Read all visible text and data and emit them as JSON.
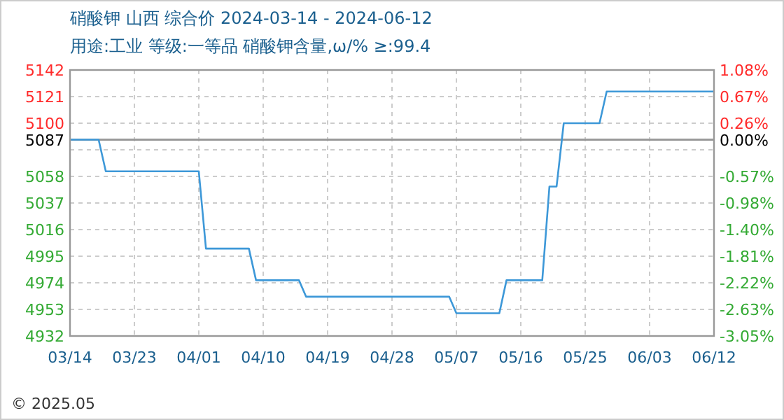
{
  "chart_data": {
    "type": "step",
    "title": "硝酸钾 山西 综合价 2024-03-14 - 2024-06-12",
    "subtitle": "用途:工业 等级:一等品 硝酸钾含量,ω/% ≥:99.4",
    "annotations": [
      "© 2025.05"
    ],
    "x": [
      "2024-03-14",
      "2024-03-18",
      "2024-03-19",
      "2024-04-01",
      "2024-04-02",
      "2024-04-08",
      "2024-04-09",
      "2024-04-15",
      "2024-04-16",
      "2024-05-06",
      "2024-05-07",
      "2024-05-13",
      "2024-05-14",
      "2024-05-19",
      "2024-05-20",
      "2024-05-21",
      "2024-05-22",
      "2024-05-27",
      "2024-05-28",
      "2024-06-12"
    ],
    "series": [
      {
        "color": "#3d98d8",
        "values": [
          5087,
          5087,
          5062,
          5062,
          5001,
          5001,
          4976,
          4976,
          4963,
          4963,
          4950,
          4950,
          4976,
          4976,
          5050,
          5050,
          5100,
          5100,
          5125,
          5125
        ]
      }
    ],
    "xlim": [
      "2024-03-14",
      "2024-06-12"
    ],
    "xticks": [
      {
        "value": "2024-03-14",
        "label": "03/14"
      },
      {
        "value": "2024-03-23",
        "label": "03/23"
      },
      {
        "value": "2024-04-01",
        "label": "04/01"
      },
      {
        "value": "2024-04-10",
        "label": "04/10"
      },
      {
        "value": "2024-04-19",
        "label": "04/19"
      },
      {
        "value": "2024-04-28",
        "label": "04/28"
      },
      {
        "value": "2024-05-07",
        "label": "05/07"
      },
      {
        "value": "2024-05-16",
        "label": "05/16"
      },
      {
        "value": "2024-05-25",
        "label": "05/25"
      },
      {
        "value": "2024-06-03",
        "label": "06/03"
      },
      {
        "value": "2024-06-12",
        "label": "06/12"
      }
    ],
    "ylim": [
      4932,
      5142
    ],
    "yticks": [
      4932,
      4953,
      4974,
      4995,
      5016,
      5037,
      5058,
      {
        "value": 5079,
        "label": null
      },
      5100,
      5121,
      5142
    ],
    "y2lim": [
      -3.047,
      1.081
    ],
    "y2ticks": [
      {
        "value": -3.047,
        "label": "-3.05%"
      },
      {
        "value": -2.634,
        "label": "-2.63%"
      },
      {
        "value": -2.221,
        "label": "-2.22%"
      },
      {
        "value": -1.809,
        "label": "-1.81%"
      },
      {
        "value": -1.396,
        "label": "-1.40%"
      },
      {
        "value": -0.983,
        "label": "-0.98%"
      },
      {
        "value": -0.57,
        "label": "-0.57%"
      },
      {
        "value": 0,
        "label": "0.00%"
      },
      {
        "value": 0.256,
        "label": "0.26%"
      },
      {
        "value": 0.668,
        "label": "0.67%"
      },
      {
        "value": 1.081,
        "label": "1.08%"
      }
    ],
    "ref_lines": [
      {
        "axis": "y",
        "value": 5087,
        "label": "5087",
        "color": "#999999"
      }
    ],
    "grid": true,
    "line_style": "solid",
    "marker": "none"
  }
}
